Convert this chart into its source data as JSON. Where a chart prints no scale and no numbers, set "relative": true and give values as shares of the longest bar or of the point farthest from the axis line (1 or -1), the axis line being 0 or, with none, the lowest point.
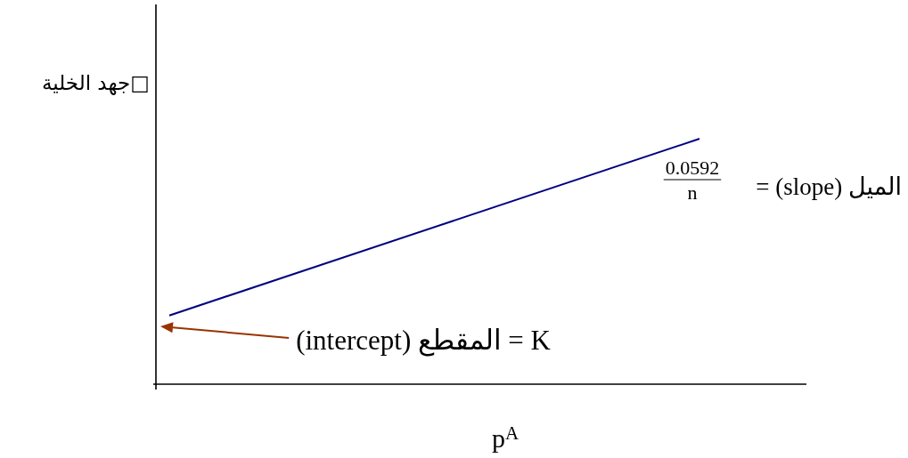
{
  "chart_data": {
    "type": "line",
    "relative": true,
    "categories": [
      null,
      null
    ],
    "values": [
      0.28,
      1
    ],
    "color": "#000080",
    "line_style": "solid",
    "xlabel": "p$^{A}$",
    "ylabel": "□جهد الخلية",
    "annotations": [
      "الميل (slope) =",
      "0.0592",
      "n",
      "K = المقطع (intercept)"
    ]
  }
}
